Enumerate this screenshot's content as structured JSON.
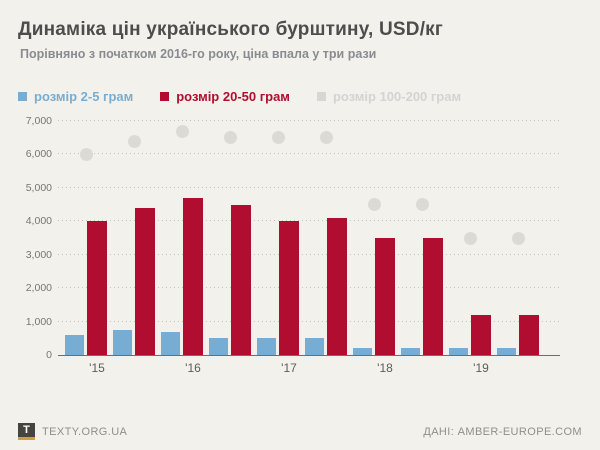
{
  "header": {
    "title": "Динаміка цін українського бурштину, USD/кг",
    "subtitle": "Порівняно з початком 2016-го року, ціна впала у три рази"
  },
  "legend": {
    "items": [
      {
        "label": "розмір 2-5 грам",
        "color": "#78add3",
        "text_color": "#78add3",
        "bold": true
      },
      {
        "label": "розмір 20-50 грам",
        "color": "#b00d30",
        "text_color": "#b00d30",
        "bold": true
      },
      {
        "label": "розмір 100-200 грам",
        "color": "#d6d6d2",
        "text_color": "#d3d3d0",
        "bold": true
      }
    ]
  },
  "chart_data": {
    "type": "bar",
    "title": "Динаміка цін українського бурштину, USD/кг",
    "subtitle": "Порівняно з початком 2016-го року, ціна впала у три рази",
    "x": [
      "2015 H1",
      "2015 H2",
      "2016 H1",
      "2016 H2",
      "2017 H1",
      "2017 H2",
      "2018 H1",
      "2018 H2",
      "2019 H1",
      "2019 H2"
    ],
    "year_labels": [
      "'15",
      "'16",
      "'17",
      "'18",
      "'19"
    ],
    "series": [
      {
        "name": "розмір 2-5 грам",
        "type": "bar",
        "color": "#78add3",
        "values": [
          600,
          750,
          700,
          500,
          500,
          500,
          200,
          200,
          200,
          200
        ]
      },
      {
        "name": "розмір 20-50 грам",
        "type": "bar",
        "color": "#b00d30",
        "values": [
          4000,
          4400,
          4700,
          4500,
          4000,
          4100,
          3500,
          3500,
          1200,
          1200
        ]
      },
      {
        "name": "розмір 100-200 грам",
        "type": "scatter",
        "color": "#dbdbd6",
        "values": [
          6000,
          6400,
          6700,
          6500,
          6500,
          6500,
          4500,
          4500,
          3500,
          3500
        ]
      }
    ],
    "ylim": [
      0,
      7000
    ],
    "yticks": [
      0,
      1000,
      2000,
      3000,
      4000,
      5000,
      6000,
      7000
    ],
    "ytick_labels": [
      "0",
      "1,000",
      "2,000",
      "3,000",
      "4,000",
      "5,000",
      "6,000",
      "7,000"
    ],
    "grid": "horizontal dotted",
    "legend_position": "top-left"
  },
  "footer": {
    "logo_letter": "T",
    "brand": "TEXTY.ORG.UA",
    "source": "ДАНІ: AMBER-EUROPE.COM"
  }
}
